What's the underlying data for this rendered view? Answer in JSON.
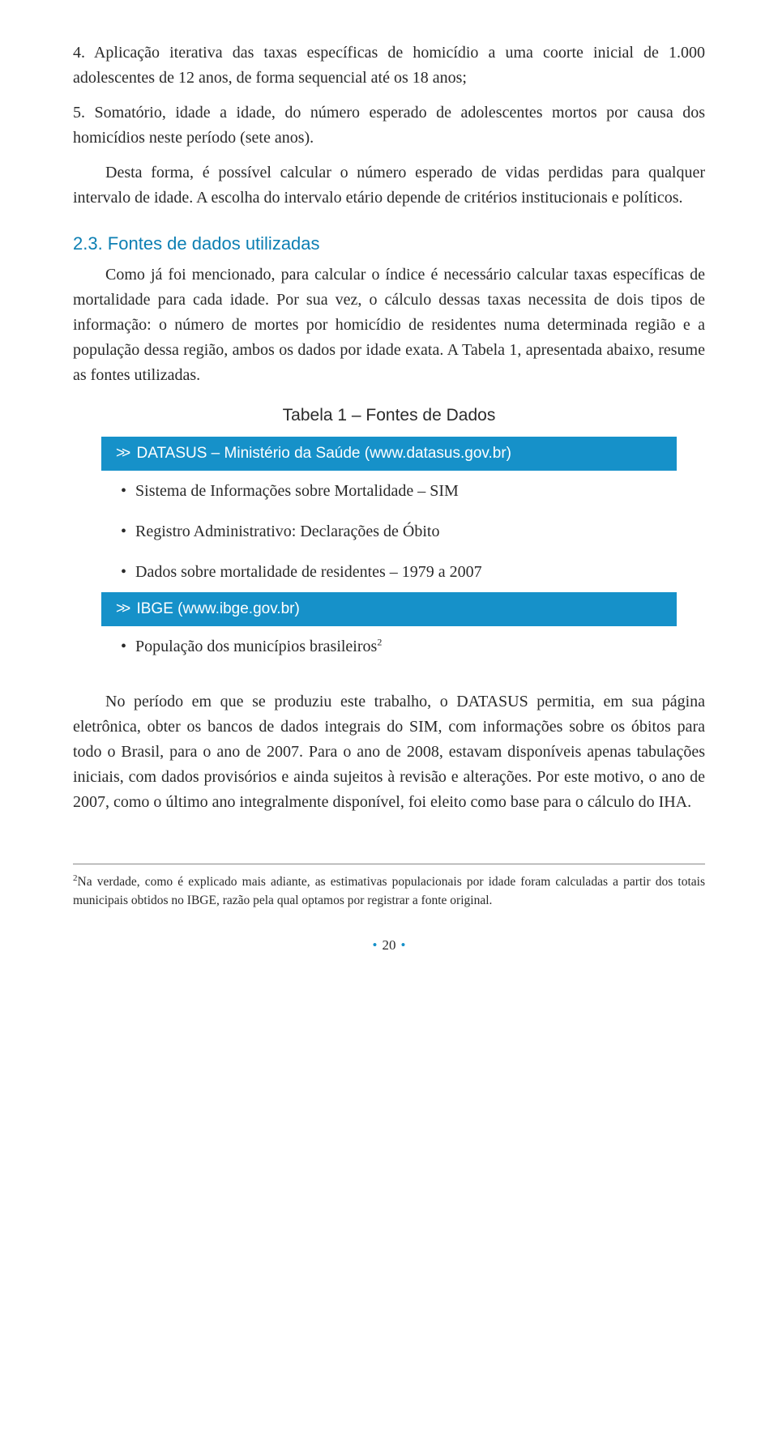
{
  "para1": "4. Aplicação iterativa das taxas específicas de homicídio a uma coorte inicial de 1.000 adolescentes de 12 anos, de forma sequencial até os 18 anos;",
  "para2": "5. Somatório, idade a idade, do número esperado de adolescentes mortos por causa dos homicídios neste período (sete anos).",
  "para3": "Desta forma, é possível calcular o número esperado de vidas perdidas para qualquer intervalo de idade. A escolha do intervalo etário depende de critérios institucionais e políticos.",
  "section_heading": "2.3. Fontes de dados utilizadas",
  "para4": "Como já foi mencionado, para calcular o índice é necessário calcular taxas específicas de mortalidade para cada idade. Por sua vez, o cálculo dessas taxas necessita de dois tipos de informação: o número de mortes por homicídio de residentes numa determinada região e a população dessa região, ambos os dados por idade exata. A Tabela 1, apresentada abaixo, resume as fontes utilizadas.",
  "table_title": "Tabela 1 – Fontes de Dados",
  "table": {
    "header1": "DATASUS – Ministério da Saúde (www.datasus.gov.br)",
    "items1": [
      "Sistema de Informações sobre Mortalidade – SIM",
      "Registro Administrativo: Declarações de Óbito",
      "Dados sobre mortalidade de residentes – 1979 a 2007"
    ],
    "header2": "IBGE (www.ibge.gov.br)",
    "items2_prefix": "População dos municípios brasileiros",
    "items2_sup": "2"
  },
  "para5": "No período em que se produziu este trabalho, o DATASUS permitia, em sua página eletrônica, obter os bancos de dados integrais do SIM, com informações sobre os óbitos para todo o Brasil, para o ano de 2007. Para o ano de 2008, estavam disponíveis apenas tabulações iniciais, com dados provisórios e ainda sujeitos à revisão e alterações. Por este motivo, o ano de 2007, como o último ano integralmente disponível, foi eleito como base para o cálculo do IHA.",
  "footnote_num": "2",
  "footnote_text": "Na verdade, como é explicado mais adiante, as estimativas populacionais por idade foram calculadas a partir dos totais municipais obtidos no IBGE, razão pela qual optamos por registrar a fonte original.",
  "page_number": "20",
  "colors": {
    "accent_blue": "#1691c9",
    "heading_blue": "#0c7fb3",
    "text": "#2a2a2a",
    "background": "#ffffff"
  }
}
